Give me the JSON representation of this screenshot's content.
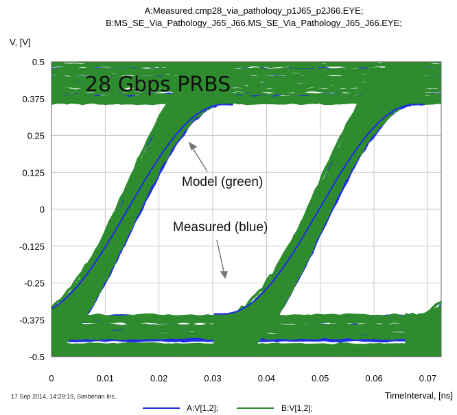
{
  "chart_data": {
    "type": "line",
    "title_lines": [
      "A:Measured.cmp28_via_patholoqy_p1J65_p2J66.EYE;",
      "B:MS_SE_Via_Pathology_J65_J66.MS_SE_Via_Pathology_J65_J66.EYE;"
    ],
    "xlabel": "TimeInterval, [ns]",
    "ylabel": "V, [V]",
    "xlim": [
      0,
      0.0725
    ],
    "ylim": [
      -0.5,
      0.5
    ],
    "x_ticks": [
      "0",
      "0.01",
      "0.02",
      "0.03",
      "0.04",
      "0.05",
      "0.06",
      "0.07"
    ],
    "y_ticks": [
      "0.5",
      "0.375",
      "0.25",
      "0.125",
      "0",
      "-0.125",
      "-0.25",
      "-0.375",
      "-0.5"
    ],
    "grid": true,
    "legend_position": "bottom",
    "series": [
      {
        "name": "A:V[1,2];",
        "color": "#1f2fe0",
        "eye_open_high": 0.36,
        "eye_open_low": -0.36
      },
      {
        "name": "B:V[1,2];",
        "color": "#2e8b2e",
        "eye_open_high": 0.35,
        "eye_open_low": -0.35
      }
    ],
    "crossings": [
      0.0142,
      0.0498
    ],
    "annotations": {
      "main": "28 Gbps PRBS",
      "model": "Model (green)",
      "measured": "Measured (blue)"
    },
    "footer": "17 Sep 2014, 14:29:19, Simberian Inc."
  }
}
